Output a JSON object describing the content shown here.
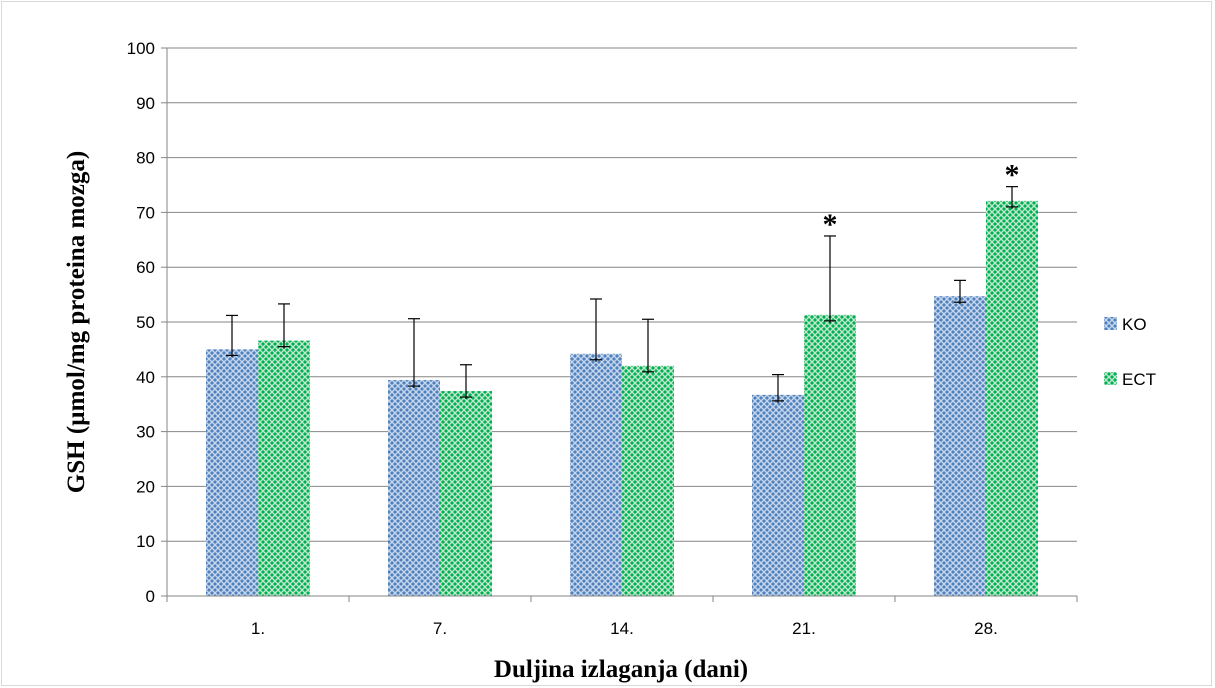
{
  "chart_data": {
    "type": "bar",
    "title": "",
    "xlabel": "Duljina izlaganja (dani)",
    "ylabel": "GSH (µmol/mg proteina mozga)",
    "categories": [
      "1.",
      "7.",
      "14.",
      "21.",
      "28."
    ],
    "ylim": [
      0,
      100
    ],
    "yticks": [
      0,
      10,
      20,
      30,
      40,
      50,
      60,
      70,
      80,
      90,
      100
    ],
    "grid": true,
    "legend_position": "right",
    "series": [
      {
        "name": "KO",
        "color": "#4f81bd",
        "values": [
          45,
          39.4,
          44.2,
          36.7,
          54.7
        ],
        "error": [
          6.2,
          11.2,
          10.0,
          3.7,
          2.9
        ]
      },
      {
        "name": "ECT",
        "color": "#00b050",
        "values": [
          46.6,
          37.4,
          42,
          51.3,
          72.1
        ],
        "error": [
          6.7,
          4.8,
          8.5,
          14.4,
          2.6
        ],
        "significance": [
          "",
          "",
          "",
          "*",
          "*"
        ]
      }
    ]
  }
}
